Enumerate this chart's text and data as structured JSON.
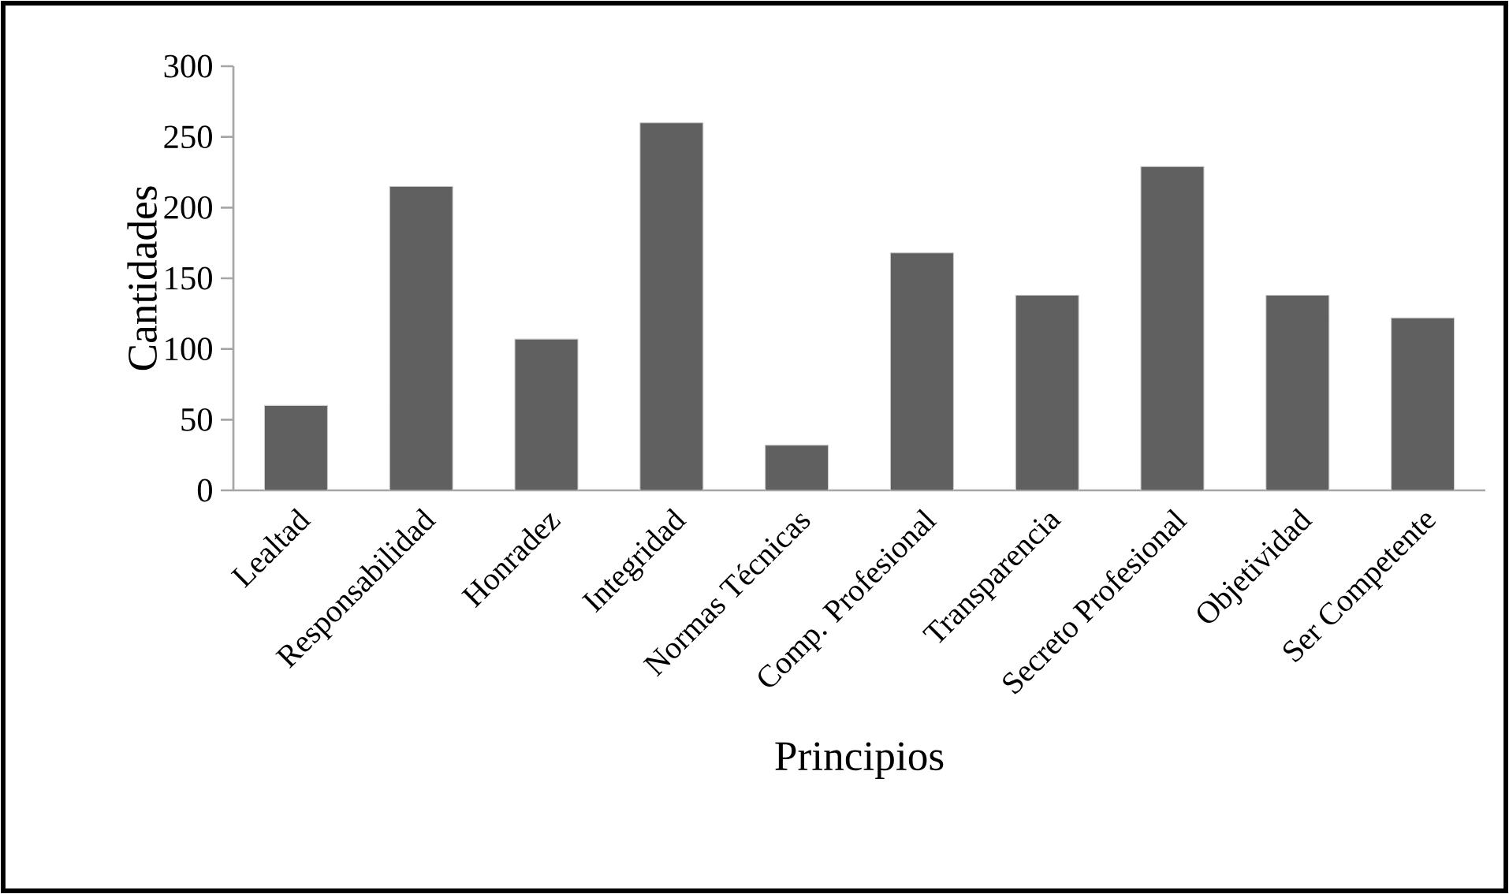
{
  "chart_data": {
    "type": "bar",
    "xlabel": "Principios",
    "ylabel": "Cantidades",
    "categories": [
      "Lealtad",
      "Responsabilidad",
      "Honradez",
      "Integridad",
      "Normas Técnicas",
      "Comp. Profesional",
      "Transparencia",
      "Secreto Profesional",
      "Objetividad",
      "Ser Competente"
    ],
    "values": [
      60,
      215,
      107,
      260,
      32,
      168,
      138,
      229,
      138,
      122
    ],
    "color": "#606060",
    "ylim": [
      0,
      300
    ],
    "yticks": [
      0,
      50,
      100,
      150,
      200,
      250,
      300
    ],
    "grid": false
  }
}
